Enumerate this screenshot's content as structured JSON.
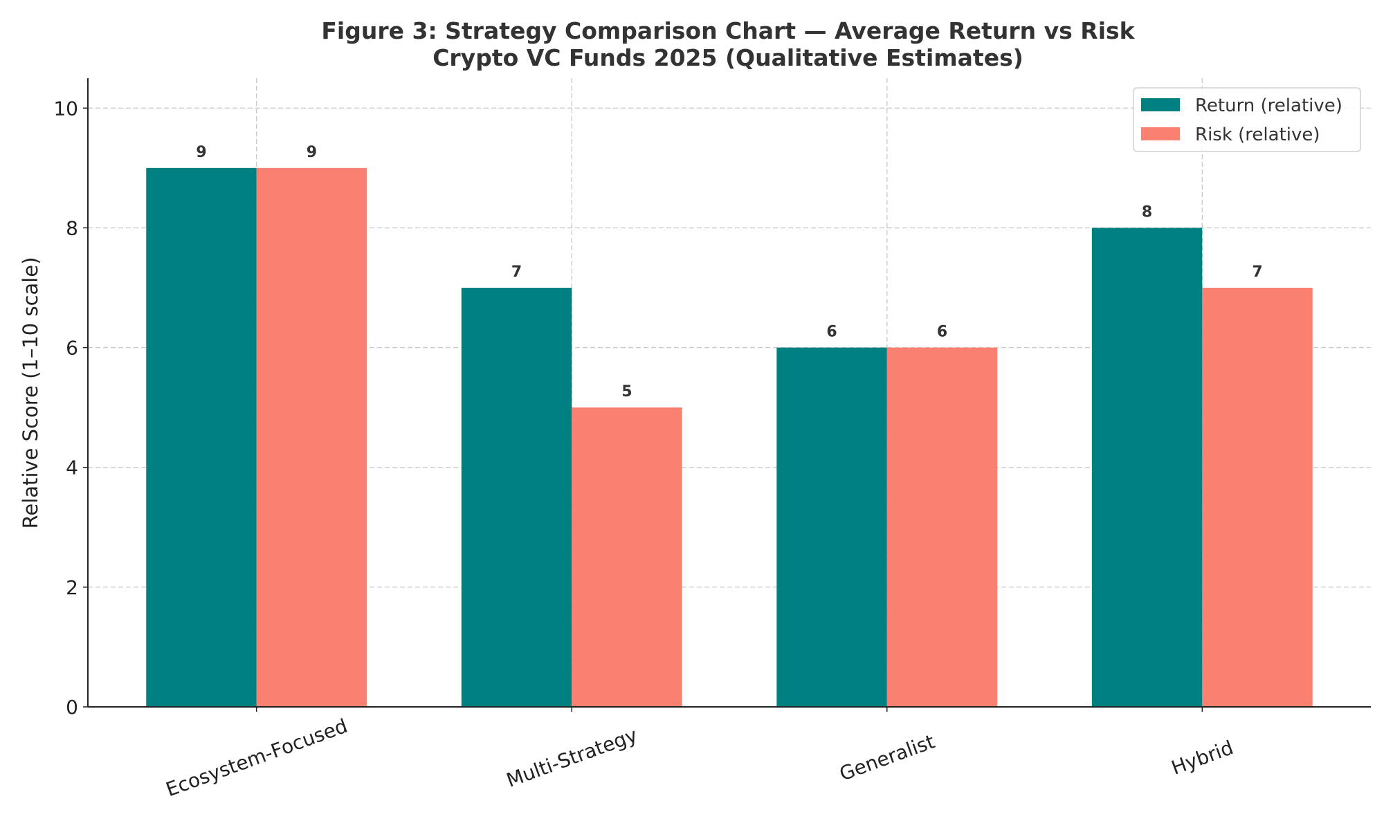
{
  "chart_data": {
    "type": "bar",
    "title": "Figure 3: Strategy Comparison Chart — Average Return vs Risk",
    "subtitle": "Crypto VC Funds 2025 (Qualitative Estimates)",
    "xlabel": "",
    "ylabel": "Relative Score (1–10 scale)",
    "categories": [
      "Ecosystem-Focused",
      "Multi-Strategy",
      "Generalist",
      "Hybrid"
    ],
    "series": [
      {
        "name": "Return (relative)",
        "color": "#008080",
        "values": [
          9,
          7,
          6,
          8
        ]
      },
      {
        "name": "Risk (relative)",
        "color": "#FA8072",
        "values": [
          9,
          5,
          6,
          7
        ]
      }
    ],
    "ylim": [
      0,
      10.5
    ],
    "yticks": [
      0,
      2,
      4,
      6,
      8,
      10
    ],
    "grid": true,
    "legend_position": "top-right",
    "data_labels": true
  }
}
